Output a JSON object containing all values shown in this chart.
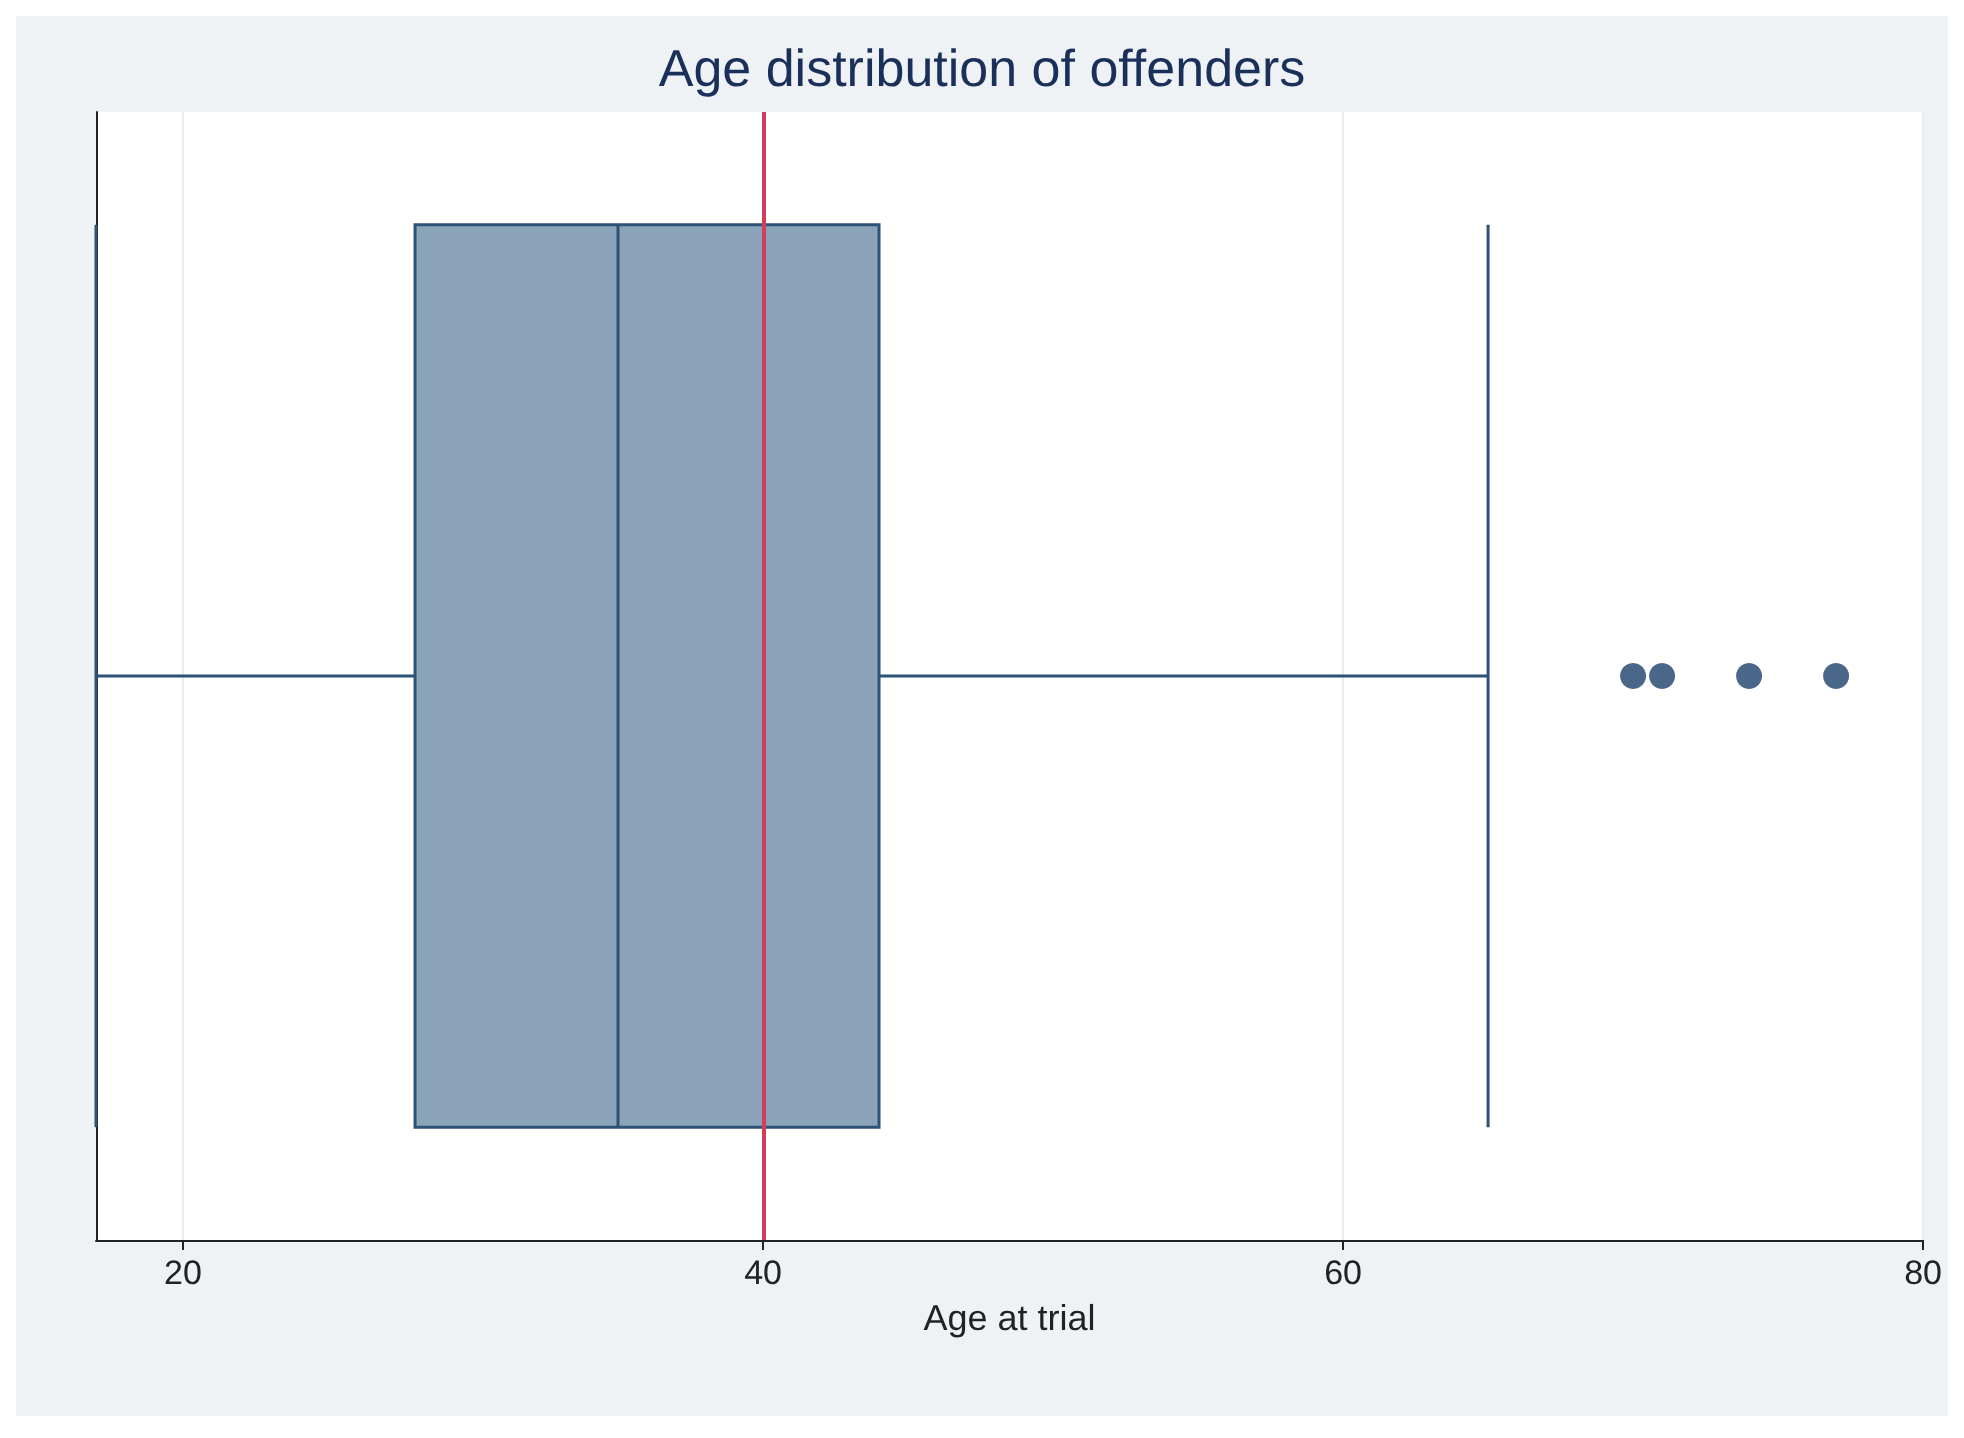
{
  "chart_data": {
    "type": "box",
    "title": "Age distribution of offenders",
    "xlabel": "Age at trial",
    "orientation": "horizontal",
    "categories": [
      null
    ],
    "boxes": [
      {
        "low": 17,
        "q1": 28,
        "median": 35,
        "q3": 44,
        "high": 65,
        "outliers": [
          70,
          71,
          74,
          77
        ]
      }
    ],
    "color": "#8ba3b9",
    "xlim": [
      17,
      80
    ],
    "xticks": [
      20,
      40,
      60,
      80
    ],
    "grid": "x",
    "tick_labels": "x",
    "marker": "circle",
    "ref_lines": [
      {
        "axis": "x",
        "value": 40,
        "color": "#d0405a"
      }
    ]
  }
}
